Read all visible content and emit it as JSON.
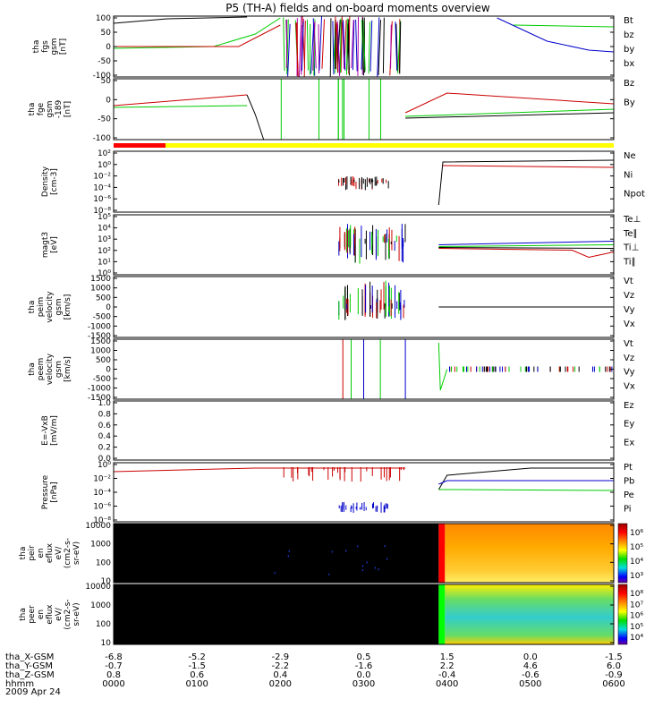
{
  "title": "P5 (TH-A) fields and on-board moments overview",
  "date_label": "2009 Apr 24",
  "colors": {
    "black": "#000000",
    "red": "#cc0000",
    "green": "#00cc00",
    "blue": "#0000cc",
    "yellow": "#ffff00"
  },
  "panels": [
    {
      "id": "fgs",
      "ylabel": [
        "tha",
        "fgs",
        "gsm",
        "[nT]"
      ],
      "ticks": [
        "100",
        "50",
        "0",
        "-50",
        "-100"
      ],
      "legend": [
        {
          "text": "Bt",
          "color": "#000000"
        },
        {
          "text": "bz",
          "color": "#cc0000"
        },
        {
          "text": "by",
          "color": "#00cc00"
        },
        {
          "text": "bx",
          "color": "#0000cc"
        }
      ]
    },
    {
      "id": "fge",
      "ylabel": [
        "tha",
        "fge",
        "gsm",
        "-189",
        "[nT]"
      ],
      "ticks": [
        "50",
        "0",
        "-50",
        "-100"
      ],
      "legend": [
        {
          "text": "Bz",
          "color": "#cc0000"
        },
        {
          "text": "By",
          "color": "#00cc00"
        }
      ]
    },
    {
      "id": "density",
      "ylabel": [
        "Density",
        "[cm-3]"
      ],
      "ticks": [
        "10²",
        "10⁰",
        "10⁻²",
        "10⁻⁴",
        "10⁻⁶",
        "10⁻⁸"
      ],
      "legend": [
        {
          "text": "Ne",
          "color": "#cc0000"
        },
        {
          "text": "Ni",
          "color": "#000000"
        },
        {
          "text": "Npot",
          "color": "#0000cc"
        }
      ]
    },
    {
      "id": "temp",
      "ylabel": [
        "magt3",
        "[eV]"
      ],
      "ticks": [
        "10⁵",
        "10⁴",
        "10³",
        "10²",
        "10¹",
        "10⁰"
      ],
      "legend": [
        {
          "text": "Te⊥",
          "color": "#cc0000"
        },
        {
          "text": "Te∥",
          "color": "#000000"
        },
        {
          "text": "Ti⊥",
          "color": "#0000cc"
        },
        {
          "text": "Ti∥",
          "color": "#00cc00"
        }
      ]
    },
    {
      "id": "peim",
      "ylabel": [
        "tha",
        "peim",
        "velocity",
        "gsm",
        "[km/s]"
      ],
      "ticks": [
        "1500",
        "1000",
        "500",
        "0",
        "-500",
        "-1000",
        "-1500"
      ],
      "legend": [
        {
          "text": "Vt",
          "color": "#000000"
        },
        {
          "text": "Vz",
          "color": "#cc0000"
        },
        {
          "text": "Vy",
          "color": "#00cc00"
        },
        {
          "text": "Vx",
          "color": "#0000cc"
        }
      ]
    },
    {
      "id": "peem",
      "ylabel": [
        "tha",
        "peem",
        "velocity",
        "gsm",
        "[km/s]"
      ],
      "ticks": [
        "1500",
        "1000",
        "500",
        "0",
        "-500",
        "-1000",
        "-1500"
      ],
      "legend": [
        {
          "text": "Vt",
          "color": "#000000"
        },
        {
          "text": "Vz",
          "color": "#cc0000"
        },
        {
          "text": "Vy",
          "color": "#00cc00"
        },
        {
          "text": "Vx",
          "color": "#0000cc"
        }
      ]
    },
    {
      "id": "efield",
      "ylabel": [
        "E=-VxB",
        "[mV/m]"
      ],
      "ticks": [
        "1.0",
        "0.8",
        "0.6",
        "0.4",
        "0.2",
        "0.0"
      ],
      "legend": [
        {
          "text": "Ez",
          "color": "#cc0000"
        },
        {
          "text": "Ey",
          "color": "#00cc00"
        },
        {
          "text": "Ex",
          "color": "#0000cc"
        }
      ]
    },
    {
      "id": "pressure",
      "ylabel": [
        "Pressure",
        "[nPa]"
      ],
      "ticks": [
        "10⁰",
        "10⁻²",
        "10⁻⁴",
        "10⁻⁶",
        "10⁻⁸"
      ],
      "legend": [
        {
          "text": "Pt",
          "color": "#000000"
        },
        {
          "text": "Pb",
          "color": "#cc0000"
        },
        {
          "text": "Pe",
          "color": "#00cc00"
        },
        {
          "text": "Pi",
          "color": "#0000cc"
        }
      ]
    },
    {
      "id": "peir",
      "ylabel": [
        "tha",
        "peir",
        "en",
        "eflux",
        "eV/",
        "(cm2-s-",
        "sr-eV)"
      ],
      "ticks": [
        "10000",
        "1000",
        "100",
        "10"
      ],
      "colorbar": [
        "10⁶",
        "10⁵",
        "10⁴",
        "10³"
      ]
    },
    {
      "id": "peer",
      "ylabel": [
        "tha",
        "peer",
        "en",
        "eflux",
        "eV/",
        "(cm2-s-",
        "sr-eV)"
      ],
      "ticks": [
        "10000",
        "1000",
        "100",
        "10"
      ],
      "colorbar": [
        "10⁸",
        "10⁷",
        "10⁶",
        "10⁵",
        "10⁴"
      ]
    }
  ],
  "xaxis": {
    "rows": [
      {
        "label": "tha_X-GSM",
        "values": [
          "-6.8",
          "-5.2",
          "-2.9",
          "0.5",
          "1.5",
          "0.0",
          "-1.5"
        ]
      },
      {
        "label": "tha_Y-GSM",
        "values": [
          "-0.7",
          "-1.5",
          "-2.2",
          "-1.6",
          "2.2",
          "4.6",
          "6.0"
        ]
      },
      {
        "label": "tha_Z-GSM",
        "values": [
          "0.8",
          "0.6",
          "0.4",
          "0.0",
          "-0.4",
          "-0.6",
          "-0.9"
        ]
      },
      {
        "label": "hhmm",
        "values": [
          "0000",
          "0100",
          "0200",
          "0300",
          "0400",
          "0500",
          "0600"
        ]
      }
    ]
  }
}
